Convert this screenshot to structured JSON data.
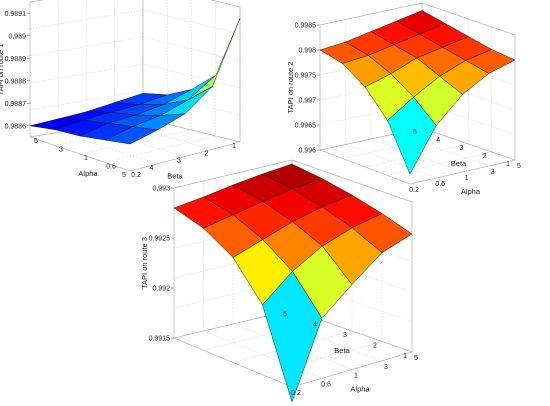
{
  "colors": {
    "background": "#ffffff",
    "colormap": [
      "#000080",
      "#0000ff",
      "#0080ff",
      "#00ffff",
      "#80ff80",
      "#ffff00",
      "#ff8000",
      "#ff0000",
      "#800000"
    ]
  },
  "chart_data": [
    {
      "type": "surface3d",
      "title": "",
      "xlabel": "Alpha",
      "ylabel": "Beta",
      "zlabel": "TAPI on route 1",
      "alpha": [
        0.2,
        0.6,
        1,
        3,
        5
      ],
      "beta": [
        1,
        2,
        3,
        4,
        5
      ],
      "alpha_tick_labels": [
        "0.2",
        "0.6",
        "1",
        "3",
        "5"
      ],
      "beta_tick_labels": [
        "1",
        "2",
        "3",
        "4",
        "5"
      ],
      "z_tick_labels": [
        "0.9886",
        "0.9887",
        "0.9888",
        "0.9889",
        "0.989",
        "0.9891"
      ],
      "zlim": [
        0.98855,
        0.98915
      ],
      "z": [
        [
          0.9891,
          0.98882,
          0.98873,
          0.98868,
          0.98866
        ],
        [
          0.98883,
          0.98874,
          0.98869,
          0.98866,
          0.98864
        ],
        [
          0.98874,
          0.9887,
          0.98867,
          0.98865,
          0.98862
        ],
        [
          0.9887,
          0.98868,
          0.98866,
          0.98864,
          0.98861
        ],
        [
          0.98867,
          0.98865,
          0.98863,
          0.98862,
          0.9886
        ]
      ]
    },
    {
      "type": "surface3d",
      "title": "",
      "xlabel": "Alpha",
      "ylabel": "Beta",
      "zlabel": "TAPI on route 2",
      "alpha": [
        0.2,
        0.6,
        1,
        3,
        5
      ],
      "beta": [
        1,
        2,
        3,
        4,
        5
      ],
      "alpha_tick_labels": [
        "0.2",
        "0.6",
        "1",
        "3",
        "5"
      ],
      "beta_tick_labels": [
        "1",
        "2",
        "3",
        "4",
        "5"
      ],
      "z_tick_labels": [
        "0.996",
        "0.9965",
        "0.997",
        "0.9975",
        "0.998",
        "0.9985"
      ],
      "zlim": [
        0.996,
        0.9985
      ],
      "z": [
        [
          0.9962,
          0.99705,
          0.99755,
          0.99785,
          0.998
        ],
        [
          0.9971,
          0.99745,
          0.99775,
          0.99795,
          0.99805
        ],
        [
          0.9976,
          0.99775,
          0.99795,
          0.99805,
          0.99815
        ],
        [
          0.9979,
          0.99795,
          0.99805,
          0.99815,
          0.99825
        ],
        [
          0.998,
          0.99805,
          0.99815,
          0.99825,
          0.99835
        ]
      ]
    },
    {
      "type": "surface3d",
      "title": "",
      "xlabel": "Alpha",
      "ylabel": "Beta",
      "zlabel": "TAPI on route 3",
      "alpha": [
        0.2,
        0.6,
        1,
        3,
        5
      ],
      "beta": [
        1,
        2,
        3,
        4,
        5
      ],
      "alpha_tick_labels": [
        "0.2",
        "0.6",
        "1",
        "3",
        "5"
      ],
      "beta_tick_labels": [
        "1",
        "2",
        "3",
        "4",
        "5"
      ],
      "z_tick_labels": [
        "0.9915",
        "0.992",
        "0.9925",
        "0.993"
      ],
      "zlim": [
        0.9915,
        0.993
      ],
      "z": [
        [
          0.99135,
          0.9921,
          0.99235,
          0.99258,
          0.99268
        ],
        [
          0.9922,
          0.99245,
          0.99262,
          0.99272,
          0.99278
        ],
        [
          0.99255,
          0.99265,
          0.99275,
          0.99282,
          0.99286
        ],
        [
          0.99272,
          0.99278,
          0.99284,
          0.99289,
          0.99292
        ],
        [
          0.9928,
          0.99284,
          0.99289,
          0.99293,
          0.99296
        ]
      ]
    }
  ]
}
